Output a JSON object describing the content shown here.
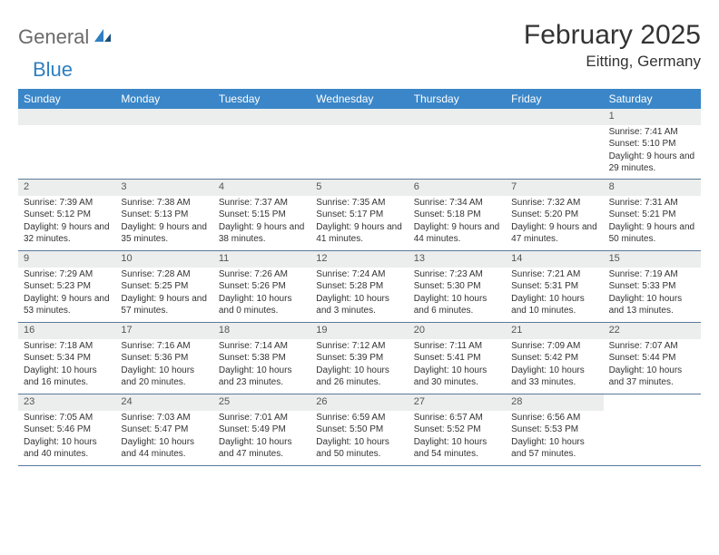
{
  "logo": {
    "text1": "General",
    "text2": "Blue"
  },
  "title": "February 2025",
  "location": "Eitting, Germany",
  "colors": {
    "header_bg": "#3a86c8",
    "header_text": "#ffffff",
    "daynum_bg": "#eceded",
    "divider": "#5a7a9a",
    "text": "#333333",
    "logo_gray": "#6b6b6b",
    "logo_blue": "#2f7fc2"
  },
  "day_names": [
    "Sunday",
    "Monday",
    "Tuesday",
    "Wednesday",
    "Thursday",
    "Friday",
    "Saturday"
  ],
  "weeks": [
    [
      null,
      null,
      null,
      null,
      null,
      null,
      {
        "n": "1",
        "sunrise": "7:41 AM",
        "sunset": "5:10 PM",
        "daylight": "9 hours and 29 minutes."
      }
    ],
    [
      {
        "n": "2",
        "sunrise": "7:39 AM",
        "sunset": "5:12 PM",
        "daylight": "9 hours and 32 minutes."
      },
      {
        "n": "3",
        "sunrise": "7:38 AM",
        "sunset": "5:13 PM",
        "daylight": "9 hours and 35 minutes."
      },
      {
        "n": "4",
        "sunrise": "7:37 AM",
        "sunset": "5:15 PM",
        "daylight": "9 hours and 38 minutes."
      },
      {
        "n": "5",
        "sunrise": "7:35 AM",
        "sunset": "5:17 PM",
        "daylight": "9 hours and 41 minutes."
      },
      {
        "n": "6",
        "sunrise": "7:34 AM",
        "sunset": "5:18 PM",
        "daylight": "9 hours and 44 minutes."
      },
      {
        "n": "7",
        "sunrise": "7:32 AM",
        "sunset": "5:20 PM",
        "daylight": "9 hours and 47 minutes."
      },
      {
        "n": "8",
        "sunrise": "7:31 AM",
        "sunset": "5:21 PM",
        "daylight": "9 hours and 50 minutes."
      }
    ],
    [
      {
        "n": "9",
        "sunrise": "7:29 AM",
        "sunset": "5:23 PM",
        "daylight": "9 hours and 53 minutes."
      },
      {
        "n": "10",
        "sunrise": "7:28 AM",
        "sunset": "5:25 PM",
        "daylight": "9 hours and 57 minutes."
      },
      {
        "n": "11",
        "sunrise": "7:26 AM",
        "sunset": "5:26 PM",
        "daylight": "10 hours and 0 minutes."
      },
      {
        "n": "12",
        "sunrise": "7:24 AM",
        "sunset": "5:28 PM",
        "daylight": "10 hours and 3 minutes."
      },
      {
        "n": "13",
        "sunrise": "7:23 AM",
        "sunset": "5:30 PM",
        "daylight": "10 hours and 6 minutes."
      },
      {
        "n": "14",
        "sunrise": "7:21 AM",
        "sunset": "5:31 PM",
        "daylight": "10 hours and 10 minutes."
      },
      {
        "n": "15",
        "sunrise": "7:19 AM",
        "sunset": "5:33 PM",
        "daylight": "10 hours and 13 minutes."
      }
    ],
    [
      {
        "n": "16",
        "sunrise": "7:18 AM",
        "sunset": "5:34 PM",
        "daylight": "10 hours and 16 minutes."
      },
      {
        "n": "17",
        "sunrise": "7:16 AM",
        "sunset": "5:36 PM",
        "daylight": "10 hours and 20 minutes."
      },
      {
        "n": "18",
        "sunrise": "7:14 AM",
        "sunset": "5:38 PM",
        "daylight": "10 hours and 23 minutes."
      },
      {
        "n": "19",
        "sunrise": "7:12 AM",
        "sunset": "5:39 PM",
        "daylight": "10 hours and 26 minutes."
      },
      {
        "n": "20",
        "sunrise": "7:11 AM",
        "sunset": "5:41 PM",
        "daylight": "10 hours and 30 minutes."
      },
      {
        "n": "21",
        "sunrise": "7:09 AM",
        "sunset": "5:42 PM",
        "daylight": "10 hours and 33 minutes."
      },
      {
        "n": "22",
        "sunrise": "7:07 AM",
        "sunset": "5:44 PM",
        "daylight": "10 hours and 37 minutes."
      }
    ],
    [
      {
        "n": "23",
        "sunrise": "7:05 AM",
        "sunset": "5:46 PM",
        "daylight": "10 hours and 40 minutes."
      },
      {
        "n": "24",
        "sunrise": "7:03 AM",
        "sunset": "5:47 PM",
        "daylight": "10 hours and 44 minutes."
      },
      {
        "n": "25",
        "sunrise": "7:01 AM",
        "sunset": "5:49 PM",
        "daylight": "10 hours and 47 minutes."
      },
      {
        "n": "26",
        "sunrise": "6:59 AM",
        "sunset": "5:50 PM",
        "daylight": "10 hours and 50 minutes."
      },
      {
        "n": "27",
        "sunrise": "6:57 AM",
        "sunset": "5:52 PM",
        "daylight": "10 hours and 54 minutes."
      },
      {
        "n": "28",
        "sunrise": "6:56 AM",
        "sunset": "5:53 PM",
        "daylight": "10 hours and 57 minutes."
      },
      null
    ]
  ],
  "labels": {
    "sunrise": "Sunrise:",
    "sunset": "Sunset:",
    "daylight": "Daylight:"
  }
}
